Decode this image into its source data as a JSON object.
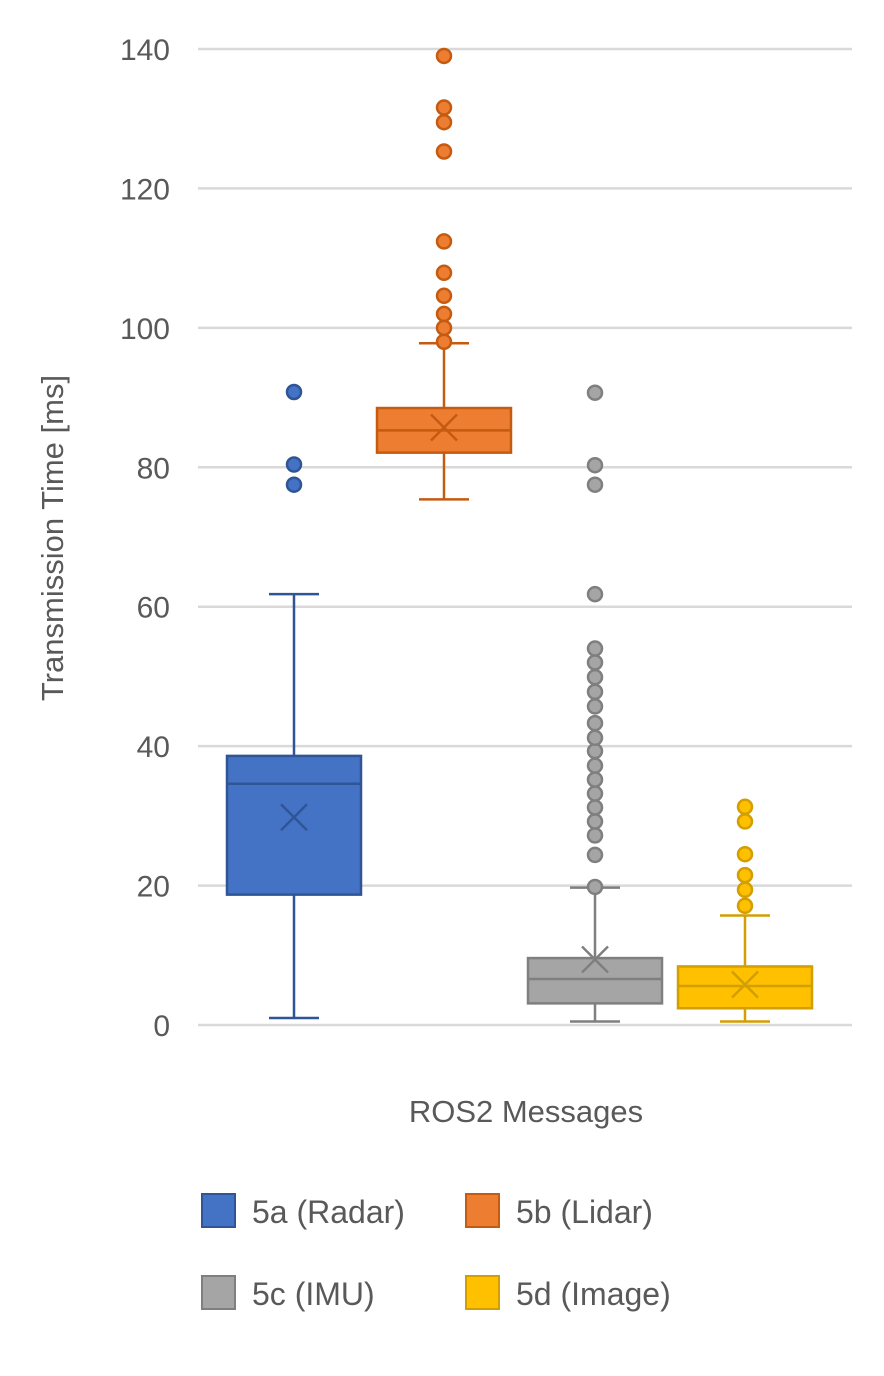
{
  "chart_data": {
    "type": "box",
    "xlabel": "ROS2 Messages",
    "ylabel": "Transmission Time [ms]",
    "ylim": [
      0,
      140
    ],
    "yticks": [
      0,
      20,
      40,
      60,
      80,
      100,
      120,
      140
    ],
    "grid": true,
    "legend_position": "bottom",
    "series": [
      {
        "name": "5a (Radar)",
        "color": "#4472c4",
        "stroke": "#2f5597",
        "min": 1,
        "q1": 18.7,
        "median": 34.6,
        "q3": 38.6,
        "max": 61.8,
        "mean": 29.8,
        "outliers": [
          77.5,
          80.4,
          90.8
        ]
      },
      {
        "name": "5b (Lidar)",
        "color": "#ed7d31",
        "stroke": "#c55a11",
        "min": 75.4,
        "q1": 82.1,
        "median": 85.3,
        "q3": 88.5,
        "max": 97.8,
        "mean": 85.7,
        "outliers": [
          98,
          100,
          102,
          104.6,
          107.9,
          112.4,
          125.3,
          129.5,
          131.6,
          139
        ]
      },
      {
        "name": "5c (IMU)",
        "color": "#a5a5a5",
        "stroke": "#7f7f7f",
        "min": 0.5,
        "q1": 3.1,
        "median": 6.6,
        "q3": 9.6,
        "max": 19.7,
        "mean": 9.4,
        "outliers": [
          19.8,
          24.4,
          27.2,
          29.2,
          31.2,
          33.2,
          35.2,
          37.2,
          39.3,
          41.2,
          43.3,
          45.7,
          47.8,
          49.9,
          52,
          54,
          61.8,
          77.5,
          80.3,
          90.7
        ]
      },
      {
        "name": "5d (Image)",
        "color": "#ffc000",
        "stroke": "#d39e00",
        "min": 0.5,
        "q1": 2.4,
        "median": 5.6,
        "q3": 8.4,
        "max": 15.7,
        "mean": 5.8,
        "outliers": [
          17.1,
          19.4,
          21.5,
          24.5,
          29.2,
          31.3
        ]
      }
    ]
  }
}
